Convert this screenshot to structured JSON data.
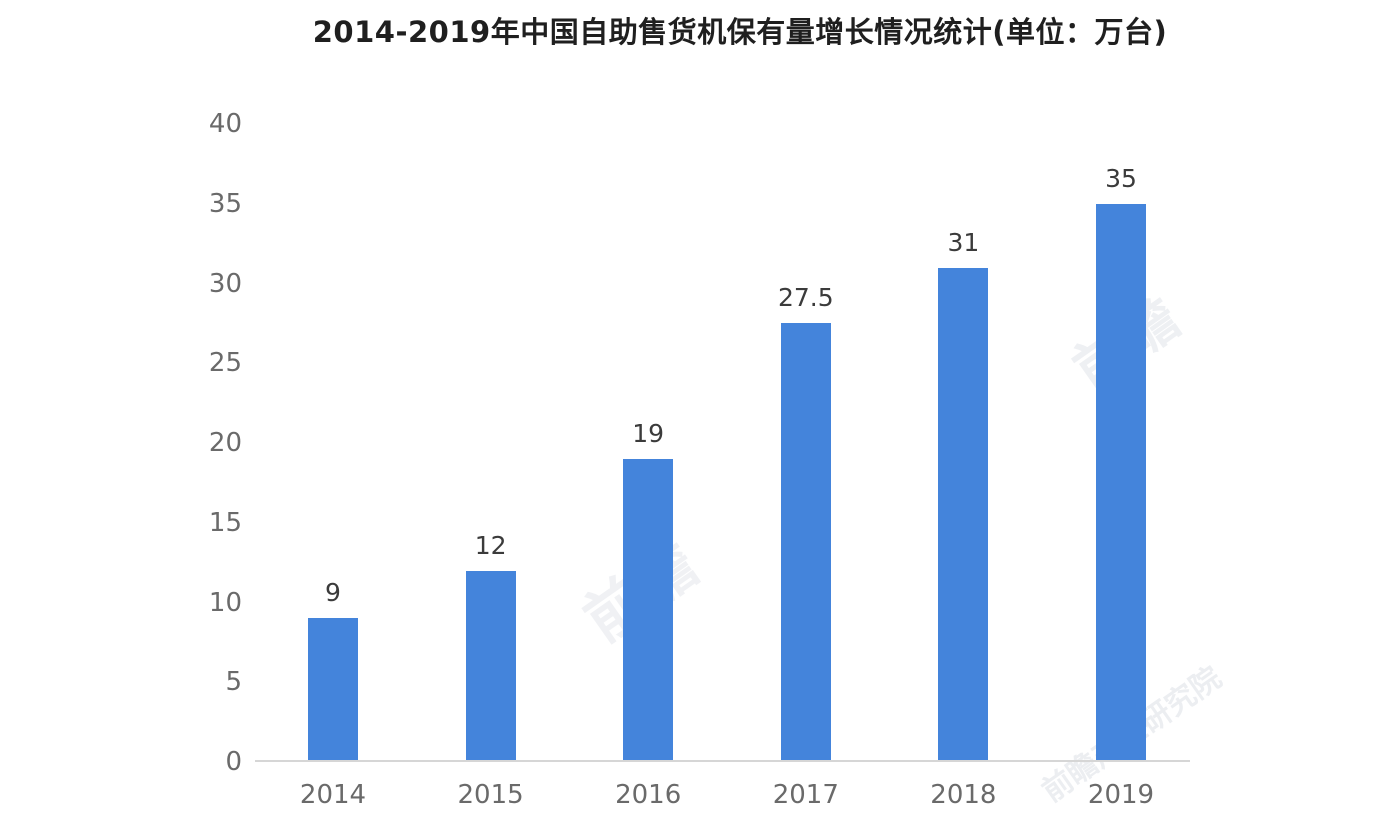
{
  "chart_data": {
    "type": "bar",
    "title": "2014-2019年中国自助售货机保有量增长情况统计(单位：万台)",
    "categories": [
      "2014",
      "2015",
      "2016",
      "2017",
      "2018",
      "2019"
    ],
    "values": [
      9,
      12,
      19,
      27.5,
      31,
      35
    ],
    "value_labels": [
      "9",
      "12",
      "19",
      "27.5",
      "31",
      "35"
    ],
    "xlabel": "",
    "ylabel": "",
    "ylim": [
      0,
      40
    ],
    "yticks": [
      0,
      5,
      10,
      15,
      20,
      25,
      30,
      35,
      40
    ],
    "grid": false,
    "legend": false
  },
  "colors": {
    "bar": "#4484db",
    "axis_line": "#d6d6d6",
    "tick_label": "#6a6a6a",
    "value_label": "#3b3b3b",
    "title": "#1f1f1f"
  },
  "watermarks": [
    "前瞻",
    "前瞻",
    "前瞻产业研究院"
  ]
}
